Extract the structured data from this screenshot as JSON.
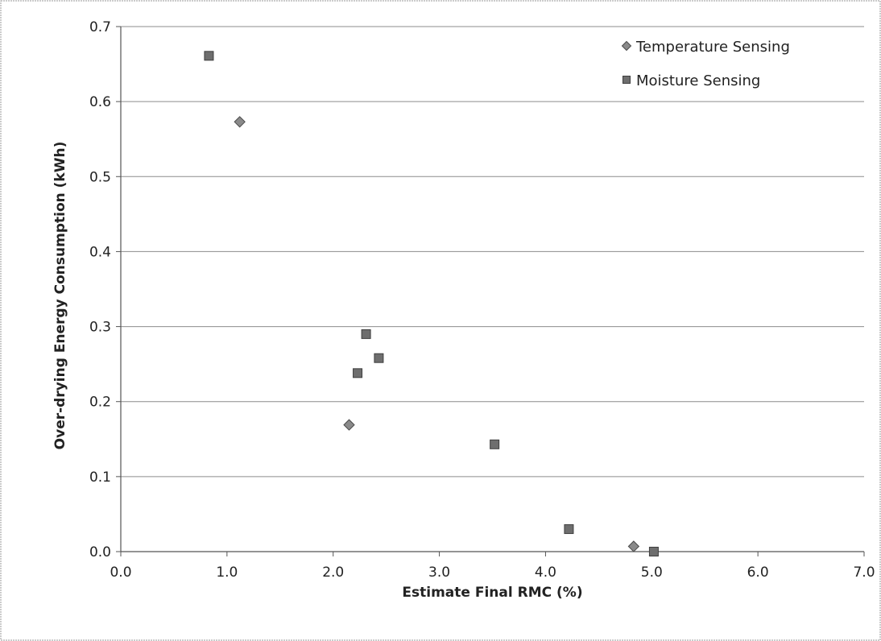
{
  "chart_data": {
    "type": "scatter",
    "title": "",
    "xlabel": "Estimate Final RMC (%)",
    "ylabel": "Over-drying Energy Consumption (kWh)",
    "xlim": [
      0,
      7
    ],
    "ylim": [
      0,
      0.7
    ],
    "x_ticks": [
      "0.0",
      "1.0",
      "2.0",
      "3.0",
      "4.0",
      "5.0",
      "6.0",
      "7.0"
    ],
    "y_ticks": [
      "0.0",
      "0.1",
      "0.2",
      "0.3",
      "0.4",
      "0.5",
      "0.6",
      "0.7"
    ],
    "grid": "horizontal",
    "legend_position": "top-right",
    "series": [
      {
        "name": "Temperature Sensing",
        "marker": "diamond",
        "color": "#8a8a8a",
        "points": [
          {
            "x": 1.12,
            "y": 0.573
          },
          {
            "x": 2.15,
            "y": 0.169
          },
          {
            "x": 4.83,
            "y": 0.007
          }
        ]
      },
      {
        "name": "Moisture Sensing",
        "marker": "square",
        "color": "#6e6e6e",
        "points": [
          {
            "x": 0.83,
            "y": 0.661
          },
          {
            "x": 2.23,
            "y": 0.238
          },
          {
            "x": 2.31,
            "y": 0.29
          },
          {
            "x": 2.43,
            "y": 0.258
          },
          {
            "x": 3.52,
            "y": 0.143
          },
          {
            "x": 4.22,
            "y": 0.03
          },
          {
            "x": 5.02,
            "y": 0.0
          }
        ]
      }
    ]
  }
}
